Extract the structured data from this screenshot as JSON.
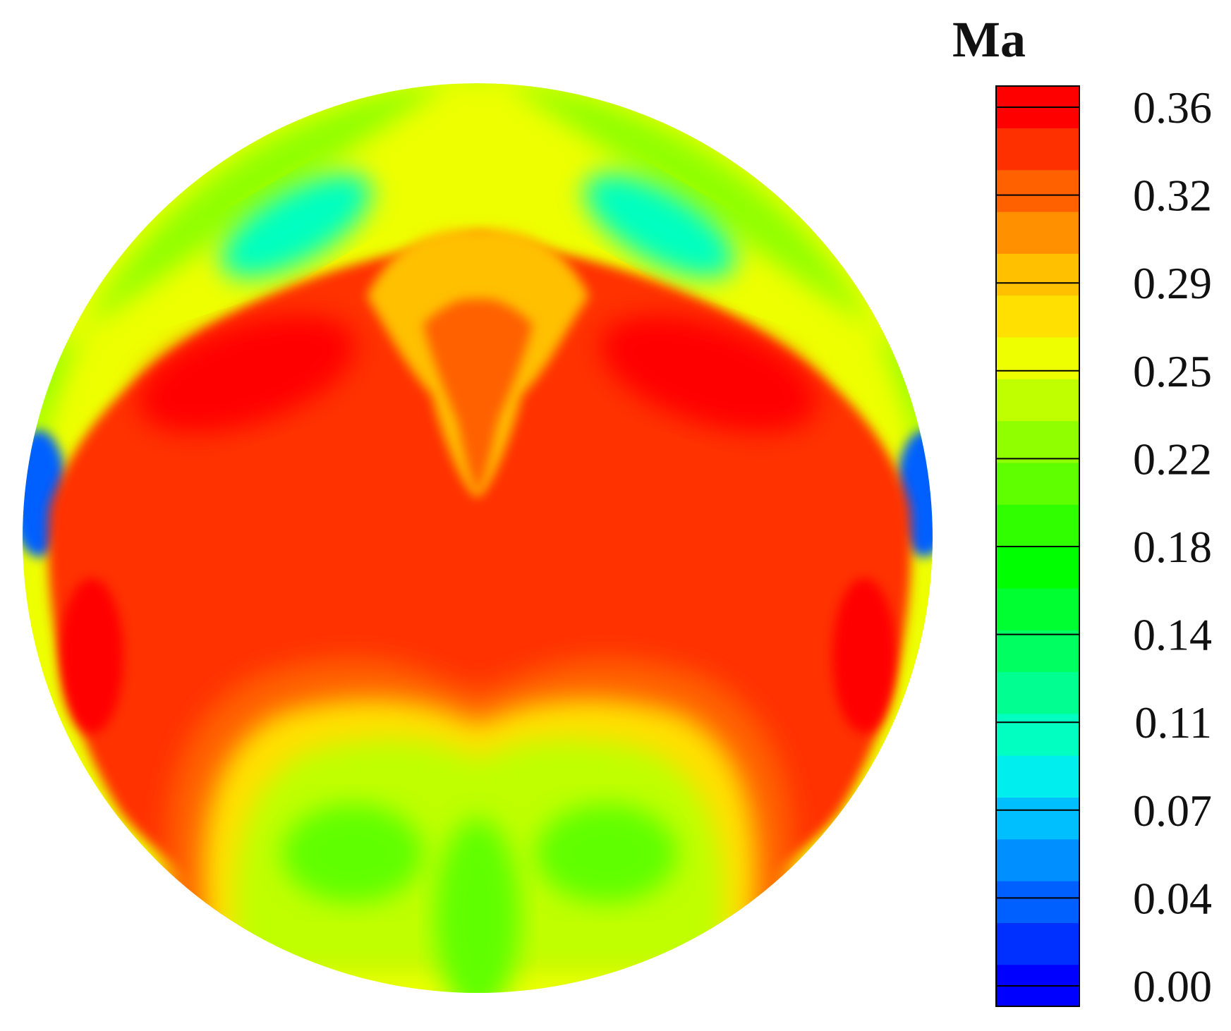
{
  "chart_data": {
    "type": "heatmap",
    "title": "",
    "colorbar": {
      "title": "Ma",
      "range": [
        0.0,
        0.38
      ],
      "tick_labels": [
        "0.36",
        "0.32",
        "0.29",
        "0.25",
        "0.22",
        "0.18",
        "0.14",
        "0.11",
        "0.07",
        "0.04",
        "0.00"
      ],
      "colors": [
        "#0000ff",
        "#0030ff",
        "#0060ff",
        "#008fff",
        "#00bfff",
        "#00eeee",
        "#00ffc0",
        "#00ff90",
        "#00ff60",
        "#00ff30",
        "#00ff00",
        "#30ff00",
        "#60ff00",
        "#90ff00",
        "#c0ff00",
        "#eeff00",
        "#ffe000",
        "#ffc000",
        "#ff9000",
        "#ff6000",
        "#ff3000",
        "#ff0000"
      ]
    },
    "field": {
      "shape": "circle",
      "base_value": 0.27,
      "regions": [
        {
          "name": "upper-rim-band",
          "value": 0.24
        },
        {
          "name": "upper-left-lobe",
          "value": 0.11
        },
        {
          "name": "upper-right-lobe",
          "value": 0.11
        },
        {
          "name": "left-edge-low",
          "value": 0.04
        },
        {
          "name": "right-edge-low",
          "value": 0.04
        },
        {
          "name": "central-core",
          "value": 0.35
        },
        {
          "name": "upper-left-peak",
          "value": 0.37
        },
        {
          "name": "upper-right-peak",
          "value": 0.37
        },
        {
          "name": "left-side-peak",
          "value": 0.37
        },
        {
          "name": "right-side-peak",
          "value": 0.37
        },
        {
          "name": "top-center-jet-outer",
          "value": 0.31
        },
        {
          "name": "top-center-jet-inner",
          "value": 0.33
        },
        {
          "name": "lower-band-orange",
          "value": 0.33
        },
        {
          "name": "lower-band-yellow",
          "value": 0.29
        },
        {
          "name": "lower-band-lime",
          "value": 0.25
        },
        {
          "name": "lower-left-vortex",
          "value": 0.21
        },
        {
          "name": "lower-right-vortex",
          "value": 0.21
        },
        {
          "name": "bottom-center-low",
          "value": 0.22
        }
      ]
    }
  }
}
